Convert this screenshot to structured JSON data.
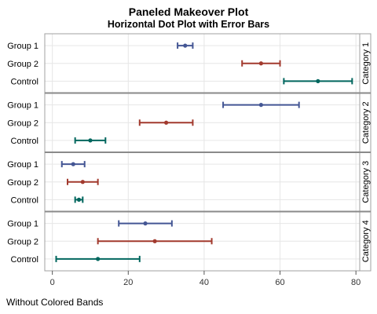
{
  "chart_data": {
    "type": "scatter",
    "subtype": "horizontal dot plot with error bars",
    "title": "Paneled Makeover Plot",
    "subtitle": "Horizontal Dot Plot with Error Bars",
    "footnote": "Without Colored Bands",
    "xlim": [
      -2,
      81
    ],
    "xticks": [
      0,
      20,
      40,
      60,
      80
    ],
    "grid": true,
    "groups": [
      "Group 1",
      "Group 2",
      "Control"
    ],
    "colors": {
      "Group 1": "#445694",
      "Group 2": "#a23a2e",
      "Control": "#01665e"
    },
    "panels": [
      {
        "name": "Category 1",
        "points": [
          {
            "group": "Group 1",
            "value": 35,
            "low": 33,
            "high": 37
          },
          {
            "group": "Group 2",
            "value": 55,
            "low": 50,
            "high": 60
          },
          {
            "group": "Control",
            "value": 70,
            "low": 61,
            "high": 79
          }
        ]
      },
      {
        "name": "Category 2",
        "points": [
          {
            "group": "Group 1",
            "value": 55,
            "low": 45,
            "high": 65
          },
          {
            "group": "Group 2",
            "value": 30,
            "low": 23,
            "high": 37
          },
          {
            "group": "Control",
            "value": 10,
            "low": 6,
            "high": 14
          }
        ]
      },
      {
        "name": "Category 3",
        "points": [
          {
            "group": "Group 1",
            "value": 5.5,
            "low": 2.5,
            "high": 8.5
          },
          {
            "group": "Group 2",
            "value": 8,
            "low": 4,
            "high": 12
          },
          {
            "group": "Control",
            "value": 7,
            "low": 6,
            "high": 8
          }
        ]
      },
      {
        "name": "Category 4",
        "points": [
          {
            "group": "Group 1",
            "value": 24.5,
            "low": 17.5,
            "high": 31.5
          },
          {
            "group": "Group 2",
            "value": 27,
            "low": 12,
            "high": 42
          },
          {
            "group": "Control",
            "value": 12,
            "low": 1,
            "high": 23
          }
        ]
      }
    ]
  }
}
